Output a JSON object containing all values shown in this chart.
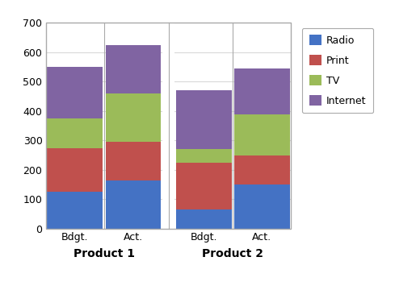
{
  "groups": [
    "Product 1",
    "Product 2"
  ],
  "bars": [
    "Bdgt.",
    "Act."
  ],
  "series": [
    "Radio",
    "Print",
    "TV",
    "Internet"
  ],
  "colors": [
    "#4472C4",
    "#C0504D",
    "#9BBB59",
    "#8064A2"
  ],
  "values": {
    "Product 1": {
      "Bdgt.": [
        125,
        150,
        100,
        175
      ],
      "Act.": [
        165,
        130,
        165,
        165
      ]
    },
    "Product 2": {
      "Bdgt.": [
        65,
        160,
        45,
        200
      ],
      "Act.": [
        150,
        100,
        140,
        155
      ]
    }
  },
  "ylim": [
    0,
    700
  ],
  "yticks": [
    0,
    100,
    200,
    300,
    400,
    500,
    600,
    700
  ],
  "bar_width": 0.95,
  "background_color": "#FFFFFF",
  "legend_labels": [
    "Radio",
    "Print",
    "TV",
    "Internet"
  ],
  "outer_border_color": "#AAAAAA",
  "grid_color": "#D9D9D9",
  "divider_color": "#AAAAAA",
  "tick_label_fontsize": 9,
  "group_label_fontsize": 10,
  "legend_fontsize": 9
}
